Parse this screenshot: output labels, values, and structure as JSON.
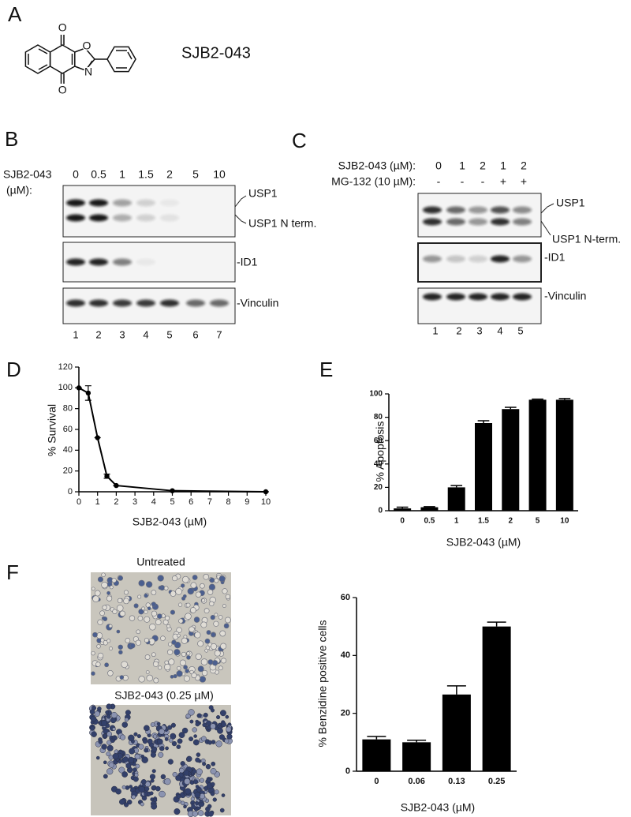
{
  "panel_a": {
    "label": "A",
    "compound": "SJB2-043",
    "atoms": [
      "O",
      "O",
      "N",
      "O"
    ]
  },
  "panel_b": {
    "label": "B",
    "treatment": "SJB2-043",
    "unit": "(µM):",
    "doses": [
      "0",
      "0.5",
      "1",
      "1.5",
      "2",
      "5",
      "10"
    ],
    "bands": [
      "USP1",
      "USP1 N term.",
      "-ID1",
      "-Vinculin"
    ],
    "lanes": [
      "1",
      "2",
      "3",
      "4",
      "5",
      "6",
      "7"
    ]
  },
  "panel_c": {
    "label": "C",
    "rows": [
      {
        "name": "SJB2-043 (µM):",
        "values": [
          "0",
          "1",
          "2",
          "1",
          "2"
        ]
      },
      {
        "name": "MG-132 (10 µM):",
        "values": [
          "-",
          "-",
          "-",
          "+",
          "+"
        ]
      }
    ],
    "bands": [
      "USP1",
      "USP1 N-term.",
      "-ID1",
      "-Vinculin"
    ],
    "lanes": [
      "1",
      "2",
      "3",
      "4",
      "5"
    ]
  },
  "panel_f_images": {
    "captions": [
      "Untreated",
      "SJB2-043 (0.25 µM)"
    ]
  },
  "chart_data": [
    {
      "type": "line",
      "label": "D",
      "xlabel": "SJB2-043 (µM)",
      "ylabel": "% Survival",
      "color": "#000000",
      "x": [
        0,
        0.5,
        1,
        1.5,
        2,
        5,
        10
      ],
      "values": [
        100,
        95,
        52,
        15,
        6,
        1,
        0
      ],
      "errors": [
        0,
        7,
        0,
        2,
        0,
        0,
        0
      ],
      "xlim": [
        0,
        10
      ],
      "xticks": [
        0,
        1,
        2,
        3,
        4,
        5,
        6,
        7,
        8,
        9,
        10
      ],
      "ylim": [
        0,
        120
      ],
      "yticks": [
        0,
        20,
        40,
        60,
        80,
        100,
        120
      ]
    },
    {
      "type": "bar",
      "label": "E",
      "xlabel": "SJB2-043 (µM)",
      "ylabel": "% Apoptosis",
      "color": "#000000",
      "categories": [
        "0",
        "0.5",
        "1",
        "1.5",
        "2",
        "5",
        "10"
      ],
      "values": [
        2,
        3,
        20,
        75,
        87,
        95,
        95
      ],
      "errors": [
        1,
        0.5,
        1.5,
        2,
        1.5,
        0.5,
        1
      ],
      "ylim": [
        0,
        100
      ],
      "yticks": [
        0,
        20,
        40,
        60,
        80,
        100
      ]
    },
    {
      "type": "bar",
      "label": "F",
      "xlabel": "SJB2-043 (µM)",
      "ylabel": "% Benzidine positive cells",
      "color": "#000000",
      "categories": [
        "0",
        "0.06",
        "0.13",
        "0.25"
      ],
      "values": [
        11,
        10,
        26.5,
        50
      ],
      "errors": [
        1,
        0.7,
        3,
        1.5
      ],
      "ylim": [
        0,
        60
      ],
      "yticks": [
        0,
        20,
        40,
        60
      ]
    }
  ]
}
